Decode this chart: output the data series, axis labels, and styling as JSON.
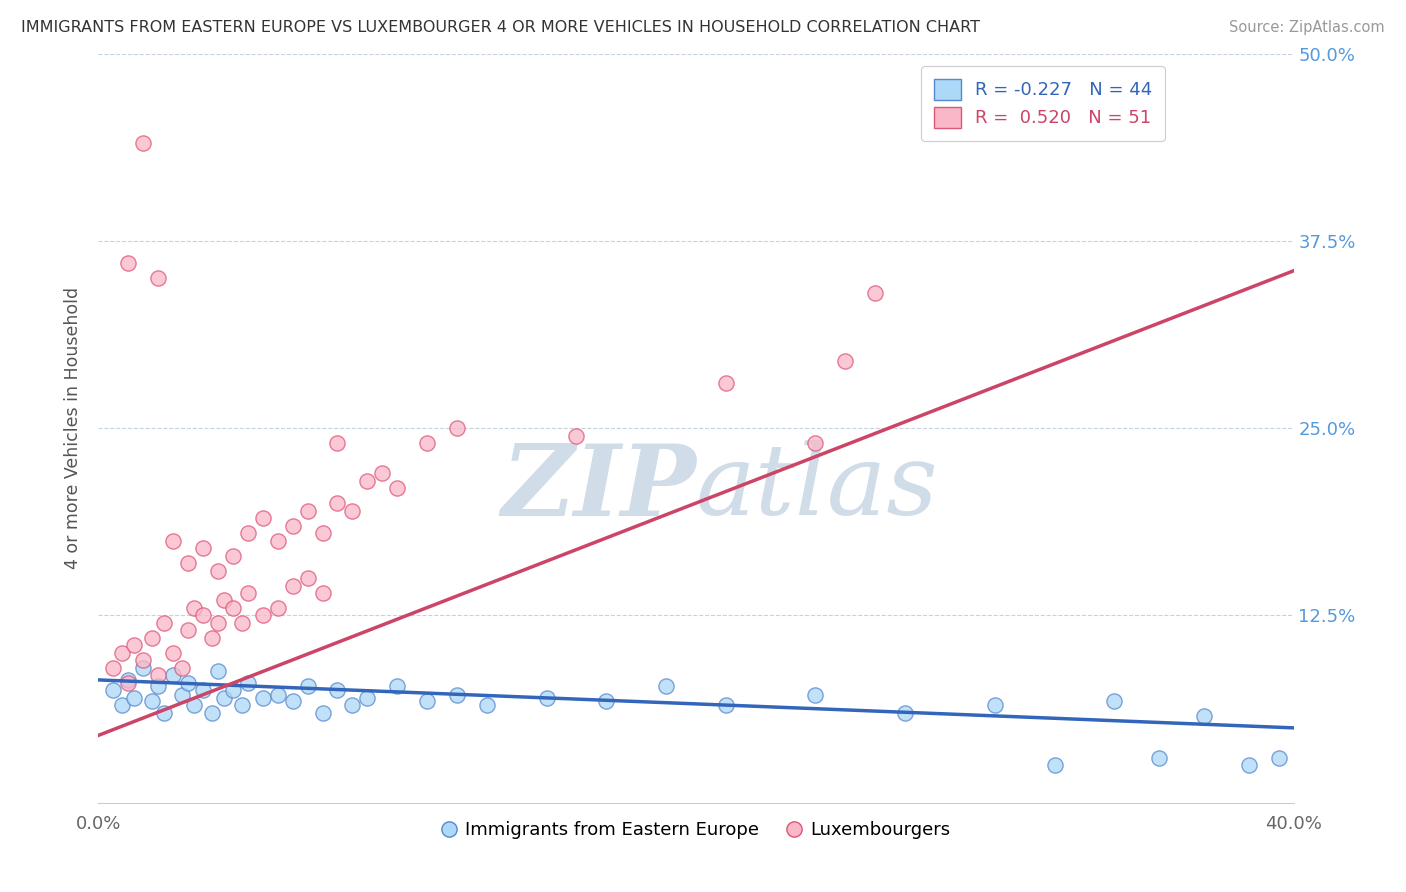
{
  "title": "IMMIGRANTS FROM EASTERN EUROPE VS LUXEMBOURGER 4 OR MORE VEHICLES IN HOUSEHOLD CORRELATION CHART",
  "source": "Source: ZipAtlas.com",
  "ylabel": "4 or more Vehicles in Household",
  "legend_labels": [
    "Immigrants from Eastern Europe",
    "Luxembourgers"
  ],
  "legend_R": [
    -0.227,
    0.52
  ],
  "legend_N": [
    44,
    51
  ],
  "xlim": [
    0.0,
    0.4
  ],
  "ylim": [
    0.0,
    0.5
  ],
  "xticks": [
    0.0,
    0.1,
    0.2,
    0.3,
    0.4
  ],
  "xtick_labels": [
    "0.0%",
    "",
    "",
    "",
    "40.0%"
  ],
  "yticks_right": [
    0.0,
    0.125,
    0.25,
    0.375,
    0.5
  ],
  "ytick_labels_right": [
    "",
    "12.5%",
    "25.0%",
    "37.5%",
    "50.0%"
  ],
  "colors_blue": "#add8f7",
  "colors_pink": "#f9b8c8",
  "edge_blue": "#5588cc",
  "edge_pink": "#dd5577",
  "trend_blue": "#3366bb",
  "trend_pink": "#cc4466",
  "watermark_color": "#d0dde8",
  "blue_scatter_x": [
    0.005,
    0.008,
    0.01,
    0.012,
    0.015,
    0.018,
    0.02,
    0.022,
    0.025,
    0.028,
    0.03,
    0.032,
    0.035,
    0.038,
    0.04,
    0.042,
    0.045,
    0.048,
    0.05,
    0.055,
    0.06,
    0.065,
    0.07,
    0.075,
    0.08,
    0.085,
    0.09,
    0.1,
    0.11,
    0.12,
    0.13,
    0.15,
    0.17,
    0.19,
    0.21,
    0.24,
    0.27,
    0.3,
    0.32,
    0.34,
    0.355,
    0.37,
    0.385,
    0.395
  ],
  "blue_scatter_y": [
    0.075,
    0.065,
    0.082,
    0.07,
    0.09,
    0.068,
    0.078,
    0.06,
    0.085,
    0.072,
    0.08,
    0.065,
    0.075,
    0.06,
    0.088,
    0.07,
    0.075,
    0.065,
    0.08,
    0.07,
    0.072,
    0.068,
    0.078,
    0.06,
    0.075,
    0.065,
    0.07,
    0.078,
    0.068,
    0.072,
    0.065,
    0.07,
    0.068,
    0.078,
    0.065,
    0.072,
    0.06,
    0.065,
    0.025,
    0.068,
    0.03,
    0.058,
    0.025,
    0.03
  ],
  "pink_scatter_x": [
    0.005,
    0.008,
    0.01,
    0.012,
    0.015,
    0.018,
    0.02,
    0.022,
    0.025,
    0.028,
    0.03,
    0.032,
    0.035,
    0.038,
    0.04,
    0.042,
    0.045,
    0.048,
    0.05,
    0.055,
    0.06,
    0.065,
    0.07,
    0.075,
    0.03,
    0.025,
    0.035,
    0.04,
    0.045,
    0.05,
    0.055,
    0.06,
    0.065,
    0.07,
    0.075,
    0.08,
    0.085,
    0.09,
    0.095,
    0.1,
    0.11,
    0.12,
    0.16,
    0.21,
    0.24,
    0.25,
    0.26,
    0.01,
    0.015,
    0.02,
    0.08
  ],
  "pink_scatter_y": [
    0.09,
    0.1,
    0.08,
    0.105,
    0.095,
    0.11,
    0.085,
    0.12,
    0.1,
    0.09,
    0.115,
    0.13,
    0.125,
    0.11,
    0.12,
    0.135,
    0.13,
    0.12,
    0.14,
    0.125,
    0.13,
    0.145,
    0.15,
    0.14,
    0.16,
    0.175,
    0.17,
    0.155,
    0.165,
    0.18,
    0.19,
    0.175,
    0.185,
    0.195,
    0.18,
    0.2,
    0.195,
    0.215,
    0.22,
    0.21,
    0.24,
    0.25,
    0.245,
    0.28,
    0.24,
    0.295,
    0.34,
    0.36,
    0.44,
    0.35,
    0.24
  ],
  "blue_trend_x0": 0.0,
  "blue_trend_y0": 0.082,
  "blue_trend_x1": 0.4,
  "blue_trend_y1": 0.05,
  "pink_trend_x0": 0.0,
  "pink_trend_y0": 0.045,
  "pink_trend_x1": 0.4,
  "pink_trend_y1": 0.355
}
